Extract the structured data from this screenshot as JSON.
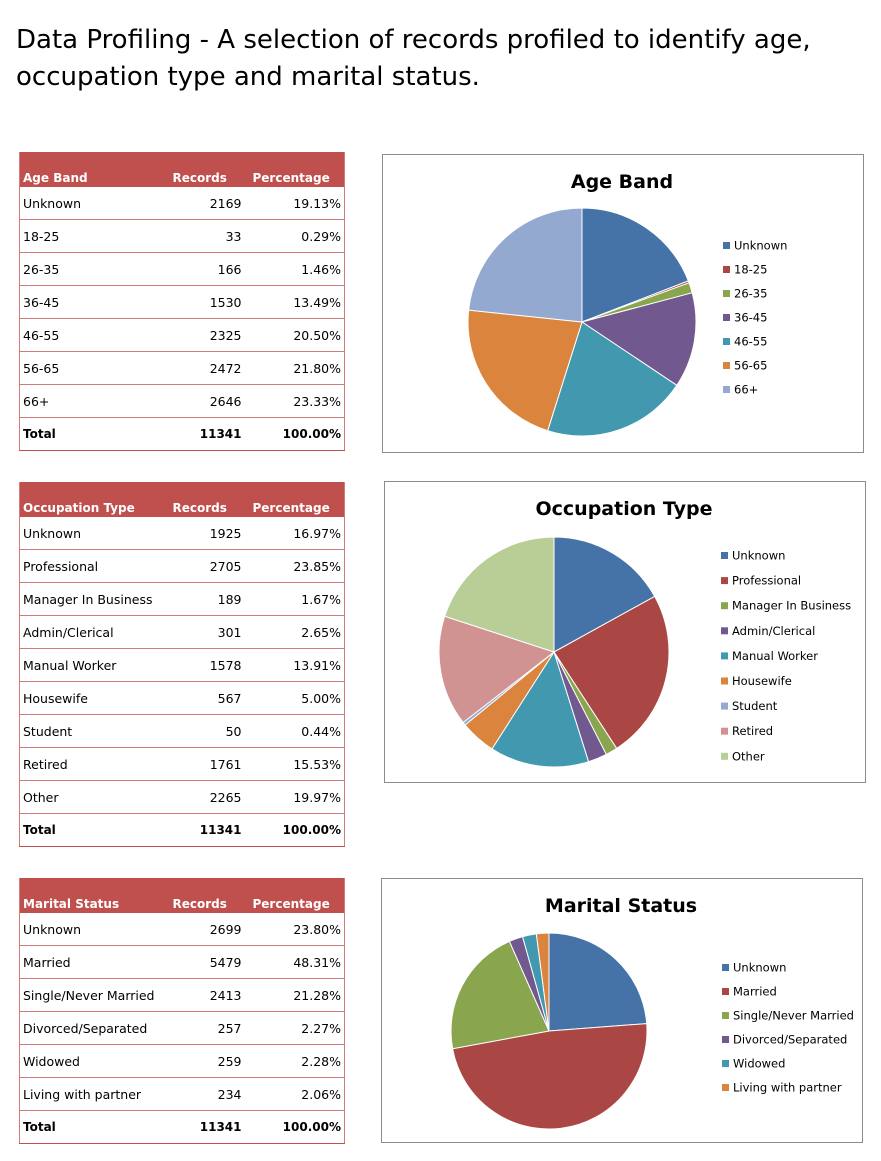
{
  "page": {
    "title_line1": "Data Profiling - A selection of records profiled to identify age,",
    "title_line2": "occupation type and marital status."
  },
  "tables": [
    {
      "headers": [
        "Age Band",
        "Records",
        "Percentage"
      ],
      "rows": [
        [
          "Unknown",
          "2169",
          "19.13%"
        ],
        [
          "18-25",
          "33",
          "0.29%"
        ],
        [
          "26-35",
          "166",
          "1.46%"
        ],
        [
          "36-45",
          "1530",
          "13.49%"
        ],
        [
          "46-55",
          "2325",
          "20.50%"
        ],
        [
          "56-65",
          "2472",
          "21.80%"
        ],
        [
          "66+",
          "2646",
          "23.33%"
        ]
      ],
      "total": [
        "Total",
        "11341",
        "100.00%"
      ]
    },
    {
      "headers": [
        "Occupation Type",
        "Records",
        "Percentage"
      ],
      "rows": [
        [
          "Unknown",
          "1925",
          "16.97%"
        ],
        [
          "Professional",
          "2705",
          "23.85%"
        ],
        [
          "Manager In Business",
          "189",
          "1.67%"
        ],
        [
          "Admin/Clerical",
          "301",
          "2.65%"
        ],
        [
          "Manual Worker",
          "1578",
          "13.91%"
        ],
        [
          "Housewife",
          "567",
          "5.00%"
        ],
        [
          "Student",
          "50",
          "0.44%"
        ],
        [
          "Retired",
          "1761",
          "15.53%"
        ],
        [
          "Other",
          "2265",
          "19.97%"
        ]
      ],
      "total": [
        "Total",
        "11341",
        "100.00%"
      ]
    },
    {
      "headers": [
        "Marital Status",
        "Records",
        "Percentage"
      ],
      "rows": [
        [
          "Unknown",
          "2699",
          "23.80%"
        ],
        [
          "Married",
          "5479",
          "48.31%"
        ],
        [
          "Single/Never Married",
          "2413",
          "21.28%"
        ],
        [
          "Divorced/Separated",
          "257",
          "2.27%"
        ],
        [
          "Widowed",
          "259",
          "2.28%"
        ],
        [
          "Living with partner",
          "234",
          "2.06%"
        ]
      ],
      "total": [
        "Total",
        "11341",
        "100.00%"
      ]
    }
  ],
  "chart_data": [
    {
      "type": "pie",
      "title": "Age Band",
      "legend": "right",
      "categories": [
        "Unknown",
        "18-25",
        "26-35",
        "36-45",
        "46-55",
        "56-65",
        "66+"
      ],
      "values": [
        2169,
        33,
        166,
        1530,
        2325,
        2472,
        2646
      ],
      "colors": [
        "#4572a7",
        "#aa4643",
        "#89a54e",
        "#71588f",
        "#4198af",
        "#db843d",
        "#93a9cf"
      ]
    },
    {
      "type": "pie",
      "title": "Occupation Type",
      "legend": "right",
      "categories": [
        "Unknown",
        "Professional",
        "Manager In Business",
        "Admin/Clerical",
        "Manual Worker",
        "Housewife",
        "Student",
        "Retired",
        "Other"
      ],
      "values": [
        1925,
        2705,
        189,
        301,
        1578,
        567,
        50,
        1761,
        2265
      ],
      "colors": [
        "#4572a7",
        "#aa4643",
        "#89a54e",
        "#71588f",
        "#4198af",
        "#db843d",
        "#93a9cf",
        "#d19392",
        "#b9cd96"
      ]
    },
    {
      "type": "pie",
      "title": "Marital Status",
      "legend": "right",
      "categories": [
        "Unknown",
        "Married",
        "Single/Never Married",
        "Divorced/Separated",
        "Widowed",
        "Living with partner"
      ],
      "values": [
        2699,
        5479,
        2413,
        257,
        259,
        234
      ],
      "colors": [
        "#4572a7",
        "#aa4643",
        "#89a54e",
        "#71588f",
        "#4198af",
        "#db843d"
      ]
    }
  ]
}
